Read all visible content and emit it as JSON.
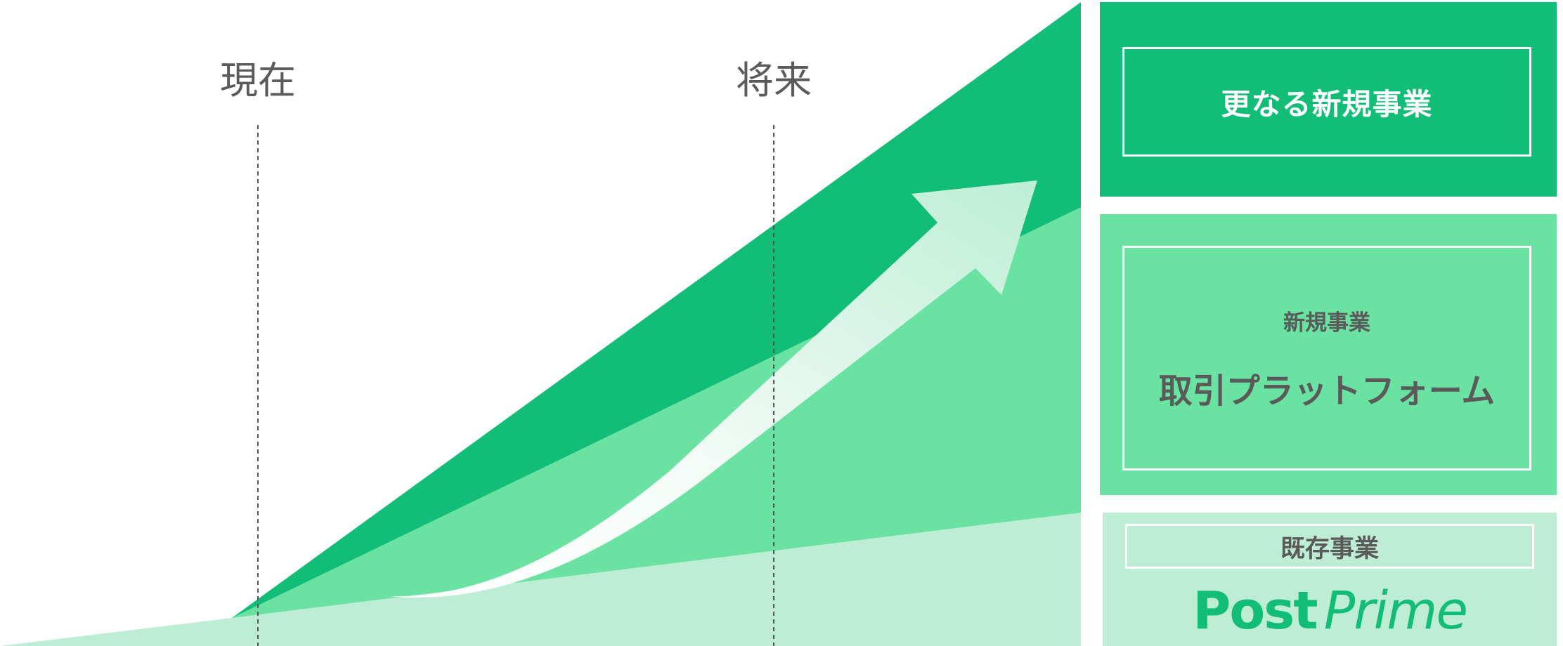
{
  "phases": {
    "now": "現在",
    "future": "将来"
  },
  "panels": {
    "future": {
      "label": "更なる新規事業",
      "color": "#12bd77"
    },
    "new_business": {
      "subtitle": "新規事業",
      "title": "取引プラットフォーム",
      "color": "#6ae2a2"
    },
    "existing": {
      "label": "既存事業",
      "logo": {
        "post": "Post",
        "prime": "Prime"
      },
      "color": "#bdeed5"
    }
  },
  "colors": {
    "text": "#5a5a5a",
    "dashed_line": "#555555",
    "arrow_start": "#ffffff",
    "arrow_end": "#bdeed5"
  },
  "icons": {
    "growth_arrow": "arrow-up-right-icon"
  }
}
